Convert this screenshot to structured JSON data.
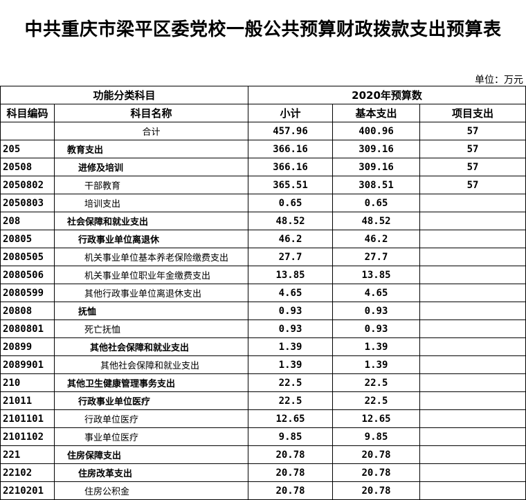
{
  "title": "中共重庆市梁平区委党校一般公共预算财政拨款支出预算表",
  "unit": "单位：万元",
  "headers": {
    "group1": "功能分类科目",
    "group2": "2020年预算数",
    "code": "科目编码",
    "name": "科目名称",
    "subtotal": "小计",
    "basic": "基本支出",
    "project": "项目支出"
  },
  "total": {
    "name": "合计",
    "subtotal": "457.96",
    "basic": "400.96",
    "project": "57"
  },
  "rows": [
    {
      "code": "205",
      "name": "教育支出",
      "level": 1,
      "subtotal": "366.16",
      "basic": "309.16",
      "project": "57"
    },
    {
      "code": "20508",
      "name": "进修及培训",
      "level": 2,
      "subtotal": "366.16",
      "basic": "309.16",
      "project": "57"
    },
    {
      "code": "2050802",
      "name": "干部教育",
      "level": 3,
      "subtotal": "365.51",
      "basic": "308.51",
      "project": "57"
    },
    {
      "code": "2050803",
      "name": "培训支出",
      "level": 3,
      "subtotal": "0.65",
      "basic": "0.65",
      "project": ""
    },
    {
      "code": "208",
      "name": "社会保障和就业支出",
      "level": 1,
      "subtotal": "48.52",
      "basic": "48.52",
      "project": ""
    },
    {
      "code": "20805",
      "name": "行政事业单位离退休",
      "level": 2,
      "subtotal": "46.2",
      "basic": "46.2",
      "project": ""
    },
    {
      "code": "2080505",
      "name": "机关事业单位基本养老保险缴费支出",
      "level": 3,
      "subtotal": "27.7",
      "basic": "27.7",
      "project": ""
    },
    {
      "code": "2080506",
      "name": "机关事业单位职业年金缴费支出",
      "level": 3,
      "subtotal": "13.85",
      "basic": "13.85",
      "project": ""
    },
    {
      "code": "2080599",
      "name": "其他行政事业单位离退休支出",
      "level": 3,
      "subtotal": "4.65",
      "basic": "4.65",
      "project": ""
    },
    {
      "code": "20808",
      "name": "抚恤",
      "level": 2,
      "subtotal": "0.93",
      "basic": "0.93",
      "project": ""
    },
    {
      "code": "2080801",
      "name": "死亡抚恤",
      "level": 3,
      "subtotal": "0.93",
      "basic": "0.93",
      "project": ""
    },
    {
      "code": "20899",
      "name": "其他社会保障和就业支出",
      "level": 4,
      "subtotal": "1.39",
      "basic": "1.39",
      "project": ""
    },
    {
      "code": "2089901",
      "name": "其他社会保障和就业支出",
      "level": 5,
      "subtotal": "1.39",
      "basic": "1.39",
      "project": ""
    },
    {
      "code": "210",
      "name": "其他卫生健康管理事务支出",
      "level": 1,
      "subtotal": "22.5",
      "basic": "22.5",
      "project": ""
    },
    {
      "code": "21011",
      "name": "行政事业单位医疗",
      "level": 2,
      "subtotal": "22.5",
      "basic": "22.5",
      "project": ""
    },
    {
      "code": "2101101",
      "name": "行政单位医疗",
      "level": 3,
      "subtotal": "12.65",
      "basic": "12.65",
      "project": ""
    },
    {
      "code": "2101102",
      "name": "事业单位医疗",
      "level": 3,
      "subtotal": "9.85",
      "basic": "9.85",
      "project": ""
    },
    {
      "code": "221",
      "name": "住房保障支出",
      "level": 1,
      "subtotal": "20.78",
      "basic": "20.78",
      "project": ""
    },
    {
      "code": "22102",
      "name": "住房改革支出",
      "level": 2,
      "subtotal": "20.78",
      "basic": "20.78",
      "project": ""
    },
    {
      "code": "2210201",
      "name": "住房公积金",
      "level": 3,
      "subtotal": "20.78",
      "basic": "20.78",
      "project": ""
    }
  ]
}
